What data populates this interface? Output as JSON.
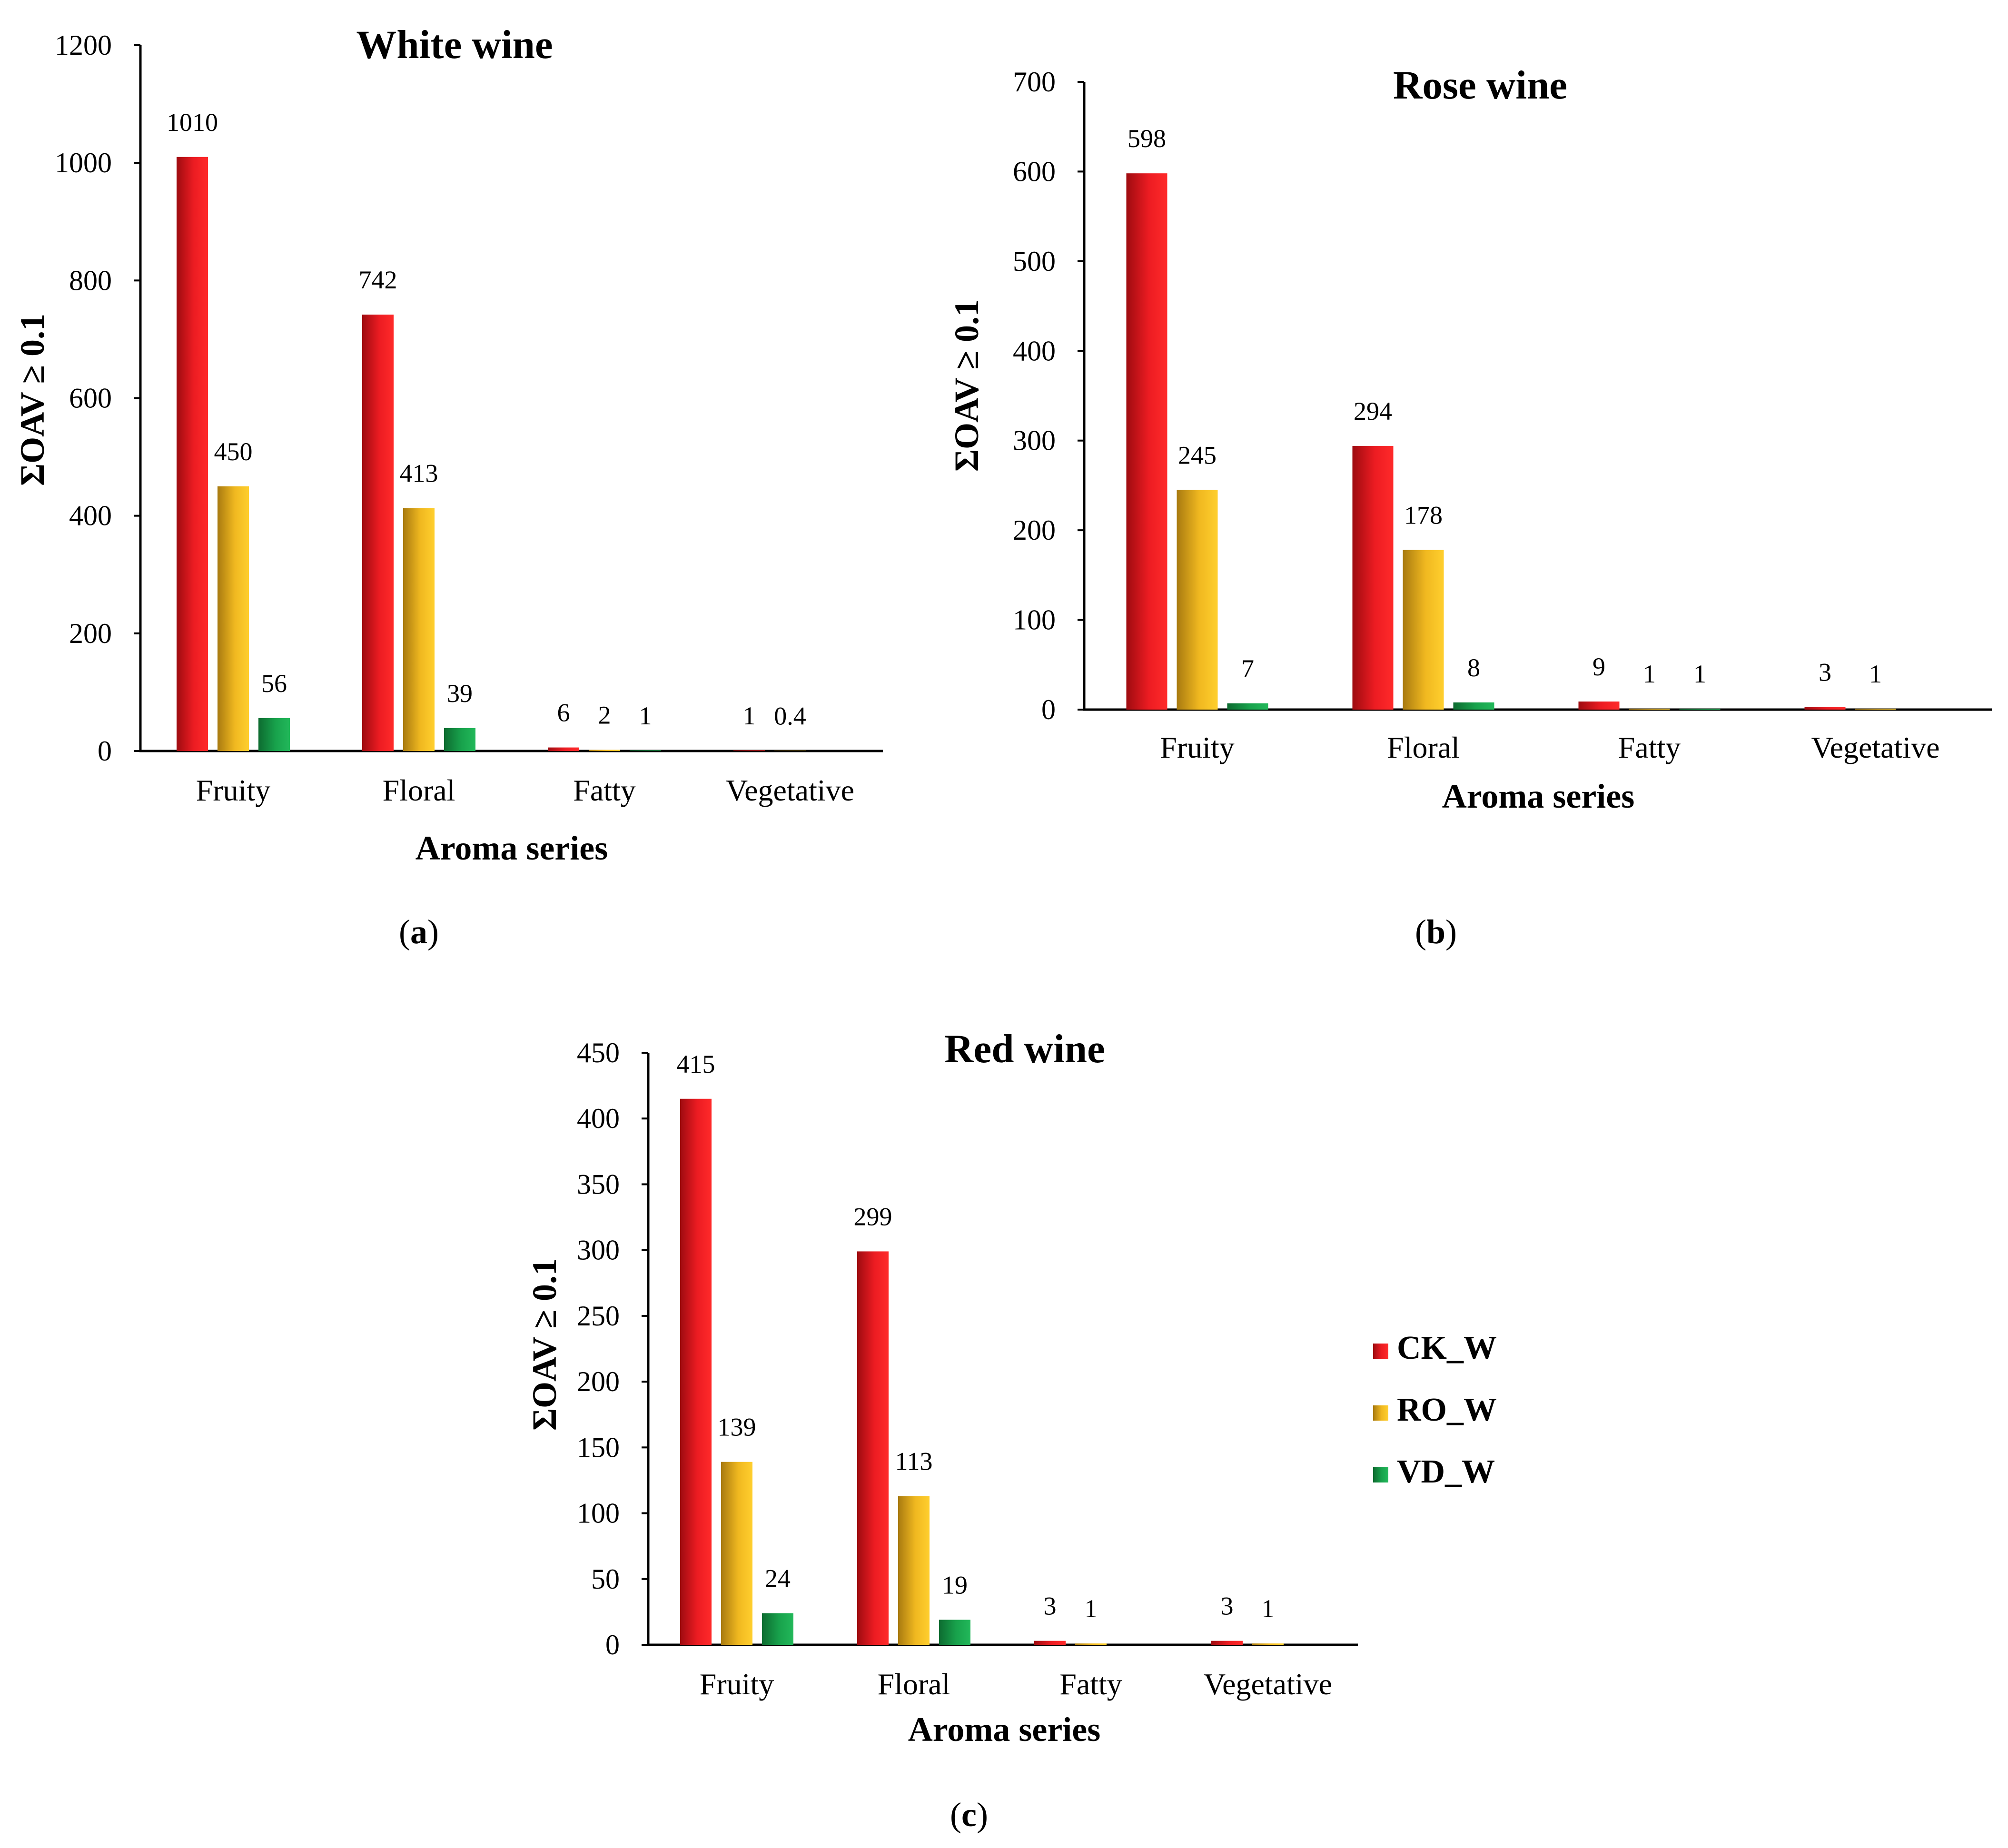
{
  "colors": {
    "CK_W": "#e8131a",
    "RO_W": "#f2bc1b",
    "VD_W": "#17a24c",
    "axis": "#000000"
  },
  "legend": {
    "items": [
      {
        "name": "CK_W",
        "color": "#e8131a"
      },
      {
        "name": "RO_W",
        "color": "#f2bc1b"
      },
      {
        "name": "VD_W",
        "color": "#17a24c"
      }
    ]
  },
  "chart_data": [
    {
      "id": "white",
      "type": "bar",
      "title": "White wine",
      "xlabel": "Aroma series",
      "ylabel_main": "ΣOAV ",
      "ylabel_sub": "≥ 0.1",
      "panel_label": {
        "open": "(",
        "letter": "a",
        "close": ")"
      },
      "categories": [
        "Fruity",
        "Floral",
        "Fatty",
        "Vegetative"
      ],
      "ylim": [
        0,
        1200
      ],
      "yticks": [
        0,
        200,
        400,
        600,
        800,
        1000,
        1200
      ],
      "series": [
        {
          "name": "CK_W",
          "values": [
            1010,
            742,
            6,
            1
          ],
          "labels": [
            "1010",
            "742",
            "6",
            "1"
          ]
        },
        {
          "name": "RO_W",
          "values": [
            450,
            413,
            2,
            0.4
          ],
          "labels": [
            "450",
            "413",
            "2",
            "0.4"
          ]
        },
        {
          "name": "VD_W",
          "values": [
            56,
            39,
            1,
            null
          ],
          "labels": [
            "56",
            "39",
            "1",
            ""
          ]
        }
      ]
    },
    {
      "id": "rose",
      "type": "bar",
      "title": "Rose wine",
      "xlabel": "Aroma series",
      "ylabel_main": "ΣOAV ",
      "ylabel_sub": "≥ 0.1",
      "panel_label": {
        "open": "(",
        "letter": "b",
        "close": ")"
      },
      "categories": [
        "Fruity",
        "Floral",
        "Fatty",
        "Vegetative"
      ],
      "ylim": [
        0,
        700
      ],
      "yticks": [
        0,
        100,
        200,
        300,
        400,
        500,
        600,
        700
      ],
      "series": [
        {
          "name": "CK_W",
          "values": [
            598,
            294,
            9,
            3
          ],
          "labels": [
            "598",
            "294",
            "9",
            "3"
          ]
        },
        {
          "name": "RO_W",
          "values": [
            245,
            178,
            1,
            1
          ],
          "labels": [
            "245",
            "178",
            "1",
            "1"
          ]
        },
        {
          "name": "VD_W",
          "values": [
            7,
            8,
            1,
            null
          ],
          "labels": [
            "7",
            "8",
            "1",
            ""
          ]
        }
      ]
    },
    {
      "id": "red",
      "type": "bar",
      "title": "Red wine",
      "xlabel": "Aroma series",
      "ylabel_main": "ΣOAV ",
      "ylabel_sub": "≥ 0.1",
      "panel_label": {
        "open": "(",
        "letter": "c",
        "close": ")"
      },
      "categories": [
        "Fruity",
        "Floral",
        "Fatty",
        "Vegetative"
      ],
      "ylim": [
        0,
        450
      ],
      "yticks": [
        0,
        50,
        100,
        150,
        200,
        250,
        300,
        350,
        400,
        450
      ],
      "series": [
        {
          "name": "CK_W",
          "values": [
            415,
            299,
            3,
            3
          ],
          "labels": [
            "415",
            "299",
            "3",
            "3"
          ]
        },
        {
          "name": "RO_W",
          "values": [
            139,
            113,
            1,
            1
          ],
          "labels": [
            "139",
            "113",
            "1",
            "1"
          ]
        },
        {
          "name": "VD_W",
          "values": [
            24,
            19,
            null,
            null
          ],
          "labels": [
            "24",
            "19",
            "",
            ""
          ]
        }
      ]
    }
  ]
}
